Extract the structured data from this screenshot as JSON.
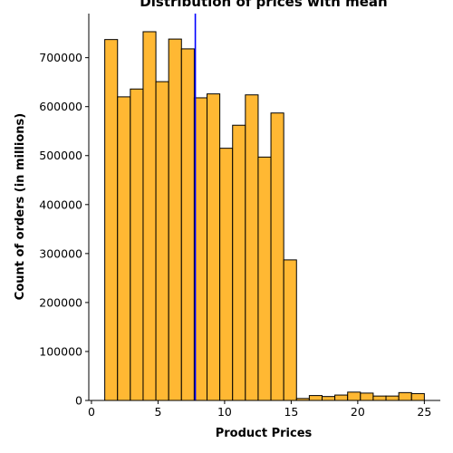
{
  "chart_data": {
    "type": "bar",
    "title": "Distribution of prices with mean",
    "xlabel": "Product Prices",
    "ylabel": "Count of orders (in millions)",
    "xlim": [
      -0.2,
      26.2
    ],
    "ylim": [
      0,
      790000
    ],
    "x_ticks": [
      0,
      5,
      10,
      15,
      20,
      25
    ],
    "y_ticks": [
      0,
      100000,
      200000,
      300000,
      400000,
      500000,
      600000,
      700000
    ],
    "bin_edges": [
      1.0,
      1.96,
      2.92,
      3.88,
      4.84,
      5.8,
      6.76,
      7.72,
      8.68,
      9.64,
      10.6,
      11.56,
      12.52,
      13.48,
      14.44,
      15.4,
      16.36,
      17.32,
      18.28,
      19.24,
      20.2,
      21.16,
      22.12,
      23.08,
      24.04,
      25.0
    ],
    "values": [
      737000,
      620000,
      636000,
      753000,
      651000,
      738000,
      718000,
      618000,
      626000,
      515000,
      562000,
      624000,
      497000,
      587000,
      287000,
      4000,
      10000,
      8000,
      11000,
      17000,
      15000,
      9000,
      9000,
      16000,
      14000
    ],
    "mean_line": {
      "x": 7.8,
      "color": "#0000ff"
    },
    "colors": {
      "bar_fill": "#ffb833",
      "bar_edge": "#000000",
      "axis": "#000000"
    },
    "grid": false,
    "legend": "none"
  }
}
